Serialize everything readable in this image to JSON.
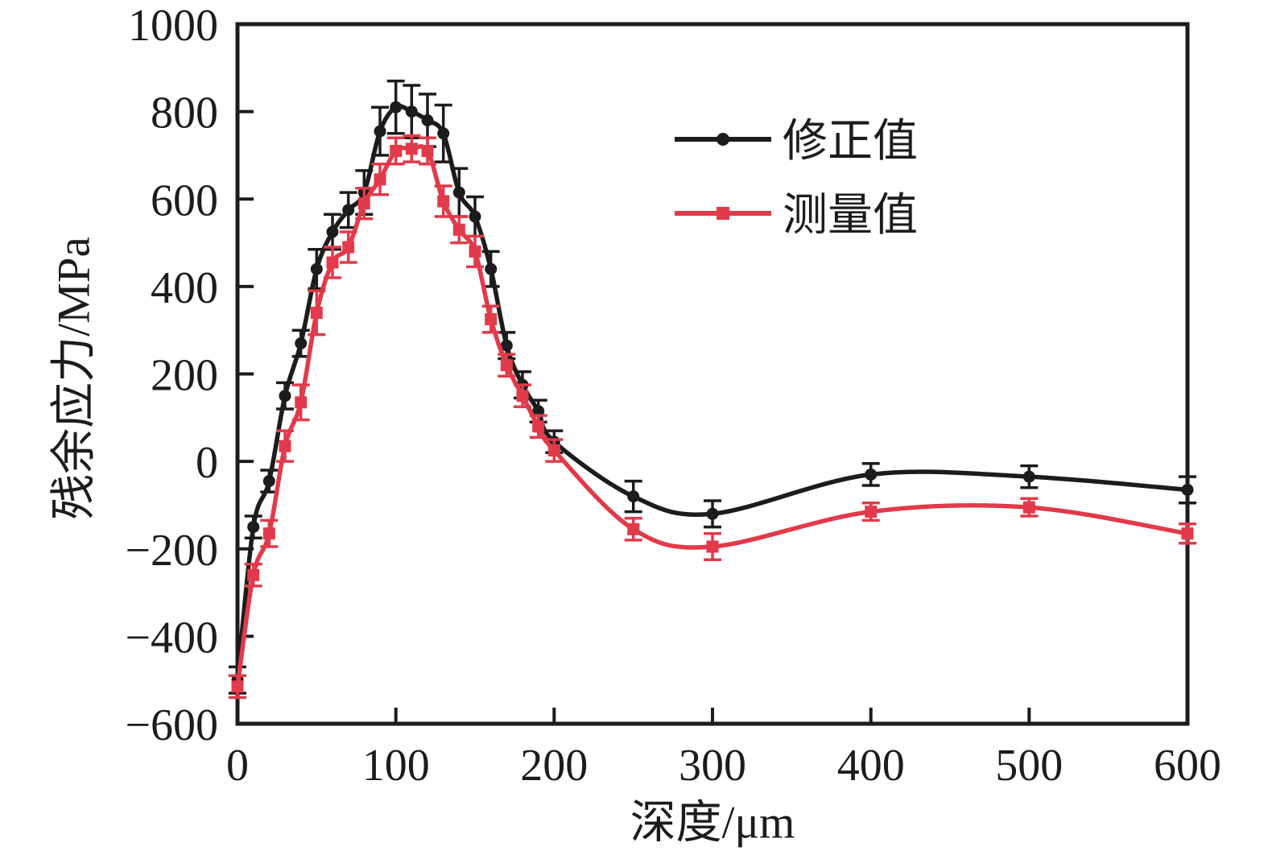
{
  "chart_data": {
    "type": "line",
    "title": "",
    "xlabel": "深度/μm",
    "ylabel": "残余应力/MPa",
    "xlim": [
      0,
      600
    ],
    "ylim": [
      -600,
      1000
    ],
    "x_ticks": [
      0,
      100,
      200,
      300,
      400,
      500,
      600
    ],
    "y_ticks": [
      -600,
      -400,
      -200,
      0,
      200,
      400,
      600,
      800,
      1000
    ],
    "grid": false,
    "frame": "full-box",
    "legend_position": "upper-right-inside",
    "x": [
      0,
      10,
      20,
      30,
      40,
      50,
      60,
      70,
      80,
      90,
      100,
      110,
      120,
      130,
      140,
      150,
      160,
      170,
      180,
      190,
      200,
      250,
      300,
      400,
      500,
      600
    ],
    "series": [
      {
        "name": "修正值",
        "color": "#1c1c1c",
        "marker": "circle",
        "values": [
          -500,
          -150,
          -45,
          150,
          270,
          440,
          525,
          575,
          615,
          755,
          810,
          800,
          780,
          750,
          615,
          560,
          440,
          265,
          175,
          115,
          45,
          -80,
          -120,
          -30,
          -35,
          -65
        ],
        "errors": [
          30,
          25,
          25,
          30,
          30,
          45,
          40,
          40,
          50,
          55,
          60,
          60,
          60,
          65,
          55,
          45,
          40,
          30,
          30,
          25,
          25,
          35,
          30,
          25,
          25,
          30
        ]
      },
      {
        "name": "测量值",
        "color": "#e23a4a",
        "marker": "square",
        "values": [
          -515,
          -260,
          -165,
          35,
          135,
          340,
          455,
          490,
          590,
          645,
          710,
          715,
          710,
          595,
          530,
          480,
          325,
          220,
          150,
          80,
          25,
          -155,
          -195,
          -115,
          -105,
          -165
        ],
        "errors": [
          25,
          25,
          30,
          35,
          40,
          50,
          35,
          35,
          35,
          35,
          30,
          30,
          30,
          35,
          30,
          35,
          30,
          25,
          25,
          25,
          25,
          25,
          30,
          20,
          20,
          22
        ]
      }
    ]
  }
}
